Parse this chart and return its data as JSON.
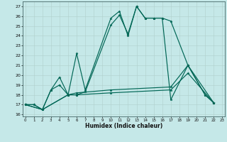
{
  "xlabel": "Humidex (Indice chaleur)",
  "background_color": "#c5e8e8",
  "grid_color": "#b0d0cc",
  "line_color": "#006655",
  "xlim": [
    -0.3,
    23.3
  ],
  "ylim": [
    15.8,
    27.5
  ],
  "xticks": [
    0,
    1,
    2,
    3,
    4,
    5,
    6,
    7,
    8,
    9,
    10,
    11,
    12,
    13,
    14,
    15,
    16,
    17,
    18,
    19,
    20,
    21,
    22,
    23
  ],
  "yticks": [
    16,
    17,
    18,
    19,
    20,
    21,
    22,
    23,
    24,
    25,
    26,
    27
  ],
  "curve1_x": [
    0,
    1,
    2,
    3,
    4,
    5,
    6,
    7,
    10,
    11,
    12,
    13,
    14,
    15,
    16,
    17,
    19,
    21,
    22
  ],
  "curve1_y": [
    17,
    17,
    16.5,
    18.5,
    19.8,
    18,
    22.2,
    18.5,
    25.8,
    26.5,
    24,
    27,
    25.8,
    25.8,
    25.8,
    25.5,
    21,
    18,
    17.2
  ],
  "curve2_x": [
    0,
    1,
    2,
    3,
    4,
    5,
    6,
    7,
    10,
    11,
    12,
    13,
    14,
    15,
    16,
    17,
    19,
    21,
    22
  ],
  "curve2_y": [
    17,
    17,
    16.5,
    18.5,
    19,
    18,
    18,
    18.3,
    25.1,
    26.1,
    24.2,
    27,
    25.8,
    25.8,
    25.8,
    17.5,
    21,
    18,
    17.2
  ],
  "curve3_x": [
    0,
    2,
    5,
    6,
    10,
    17,
    19,
    22
  ],
  "curve3_y": [
    17,
    16.5,
    18,
    18.2,
    18.5,
    18.8,
    21,
    17.2
  ],
  "curve4_x": [
    0,
    2,
    5,
    6,
    10,
    17,
    19,
    22
  ],
  "curve4_y": [
    17,
    16.5,
    18,
    18,
    18.2,
    18.5,
    20.2,
    17.2
  ]
}
